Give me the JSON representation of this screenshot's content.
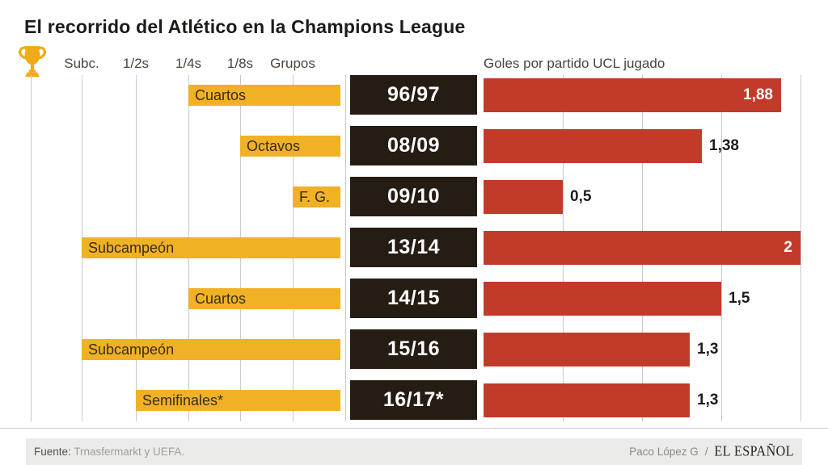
{
  "title": "El recorrido del Atlético en la Champions League",
  "left_axis": {
    "stages": [
      "Subc.",
      "1/2s",
      "1/4s",
      "1/8s",
      "Grupos"
    ]
  },
  "right_axis_title": "Goles por partido UCL jugado",
  "chart_data": {
    "type": "bar",
    "title": "El recorrido del Atlético en la Champions League",
    "left_chart_axis_labels": [
      "Subc.",
      "1/2s",
      "1/4s",
      "1/8s",
      "Grupos"
    ],
    "right_chart_title": "Goles por partido UCL jugado",
    "rows": [
      {
        "season": "96/97",
        "stage_label": "Cuartos",
        "stage": "1/4s",
        "goals": 1.88,
        "goals_label": "1,88"
      },
      {
        "season": "08/09",
        "stage_label": "Octavos",
        "stage": "1/8s",
        "goals": 1.38,
        "goals_label": "1,38"
      },
      {
        "season": "09/10",
        "stage_label": "F. G.",
        "stage": "Grupos",
        "goals": 0.5,
        "goals_label": "0,5"
      },
      {
        "season": "13/14",
        "stage_label": "Subcampeón",
        "stage": "Subc.",
        "goals": 2,
        "goals_label": "2"
      },
      {
        "season": "14/15",
        "stage_label": "Cuartos",
        "stage": "1/4s",
        "goals": 1.5,
        "goals_label": "1,5"
      },
      {
        "season": "15/16",
        "stage_label": "Subcampeón",
        "stage": "Subc.",
        "goals": 1.3,
        "goals_label": "1,3"
      },
      {
        "season": "16/17*",
        "stage_label": "Semifinales*",
        "stage": "1/2s",
        "goals": 1.3,
        "goals_label": "1,3"
      }
    ],
    "right_axis": {
      "min": 0,
      "max": 2,
      "gridlines": [
        0.5,
        1,
        1.5,
        2
      ]
    },
    "grid": "on",
    "legend": "none"
  },
  "colors": {
    "accent_yellow": "#F0B125",
    "accent_red": "#C23B2A",
    "box_dark": "#251C14",
    "grid": "#C9C9C9",
    "text_dark": "#1D1B18",
    "value_inside": "#FFFFFF"
  },
  "footer": {
    "source_label": "Fuente:",
    "source": "Trnasfermarkt y UEFA.",
    "credit": "Paco López G",
    "separator": "/",
    "brand": "EL ESPAÑOL"
  }
}
